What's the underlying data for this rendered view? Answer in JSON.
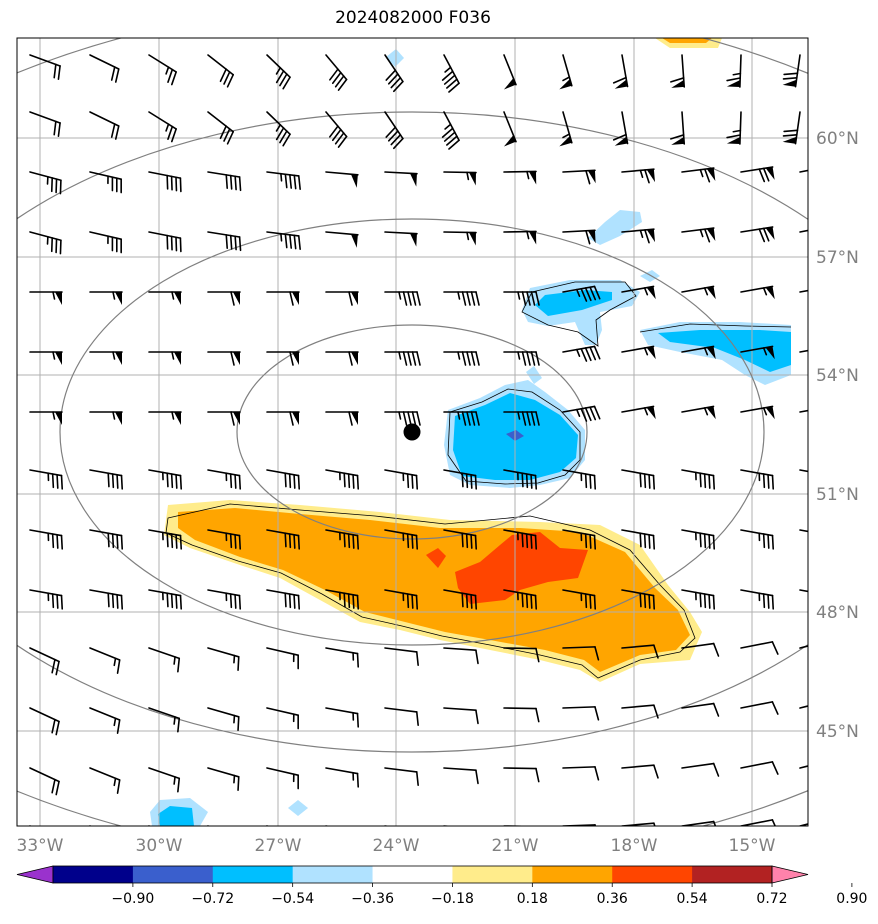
{
  "title": "2024082000 F036",
  "longitude_labels": [
    "33°W",
    "30°W",
    "27°W",
    "24°W",
    "21°W",
    "18°W",
    "15°W"
  ],
  "latitude_labels": [
    "60°N",
    "57°N",
    "54°N",
    "51°N",
    "48°N",
    "45°N"
  ],
  "colorbar": {
    "tick_labels": [
      "−0.90",
      "−0.72",
      "−0.54",
      "−0.36",
      "−0.18",
      "0.18",
      "0.36",
      "0.54",
      "0.72",
      "0.90"
    ],
    "colors": [
      "#9a32cd",
      "#00008b",
      "#3a5fcd",
      "#00bfff",
      "#b0e2ff",
      "#ffffff",
      "#ffec8b",
      "#ffa500",
      "#ff4500",
      "#b22222",
      "#ff82ab"
    ]
  },
  "colors": {
    "grid": "#b0b0b0",
    "circles": "#808080",
    "barbs": "#000000",
    "center_marker": "#000000"
  },
  "center_marker": {
    "name": "center-dot",
    "lon": -23.6,
    "lat": 52.6
  }
}
